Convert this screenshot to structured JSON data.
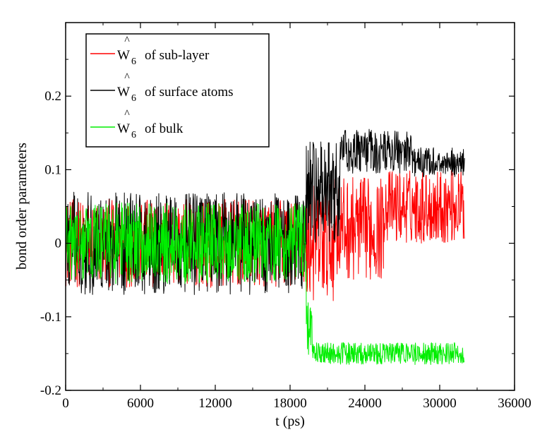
{
  "chart_data": {
    "type": "line",
    "xlabel": "t (ps)",
    "ylabel": "bond order parameters",
    "xlim": [
      0,
      36000
    ],
    "ylim": [
      -0.2,
      0.3
    ],
    "xticks": [
      0,
      6000,
      12000,
      18000,
      24000,
      30000,
      36000
    ],
    "yticks": [
      -0.2,
      -0.1,
      0,
      0.1,
      0.2
    ],
    "xtick_labels": [
      "0",
      "6000",
      "12000",
      "18000",
      "24000",
      "30000",
      "36000"
    ],
    "ytick_labels": [
      "-0.2",
      "-0.1",
      "0",
      "0.1",
      "0.2"
    ],
    "grid": false,
    "legend_position": "top-left",
    "series": [
      {
        "name": "Ŵ6 of sub-layer",
        "legend_base": "W",
        "legend_sub": "6",
        "legend_rest": "of sub-layer",
        "color": "#ff0000",
        "segments": [
          {
            "t_start": 0,
            "t_end": 19300,
            "center": 0.0,
            "amplitude": 0.06
          },
          {
            "t_start": 19300,
            "t_end": 21500,
            "center": 0.0,
            "amplitude": 0.08
          },
          {
            "t_start": 21500,
            "t_end": 25500,
            "center": 0.02,
            "amplitude": 0.07
          },
          {
            "t_start": 25500,
            "t_end": 32000,
            "center": 0.05,
            "amplitude": 0.05
          }
        ]
      },
      {
        "name": "Ŵ6 of surface atoms",
        "legend_base": "W",
        "legend_sub": "6",
        "legend_rest": "of surface atoms",
        "color": "#000000",
        "segments": [
          {
            "t_start": 0,
            "t_end": 19300,
            "center": 0.0,
            "amplitude": 0.07
          },
          {
            "t_start": 19300,
            "t_end": 22000,
            "center": 0.07,
            "amplitude": 0.07
          },
          {
            "t_start": 22000,
            "t_end": 28000,
            "center": 0.125,
            "amplitude": 0.03
          },
          {
            "t_start": 28000,
            "t_end": 32000,
            "center": 0.11,
            "amplitude": 0.02
          }
        ]
      },
      {
        "name": "Ŵ6 of bulk",
        "legend_base": "W",
        "legend_sub": "6",
        "legend_rest": "of bulk",
        "color": "#00ee00",
        "segments": [
          {
            "t_start": 0,
            "t_end": 19300,
            "center": 0.0,
            "amplitude": 0.055
          },
          {
            "t_start": 19300,
            "t_end": 19800,
            "center": -0.12,
            "amplitude": 0.04
          },
          {
            "t_start": 19800,
            "t_end": 32000,
            "center": -0.15,
            "amplitude": 0.015
          }
        ]
      }
    ]
  }
}
